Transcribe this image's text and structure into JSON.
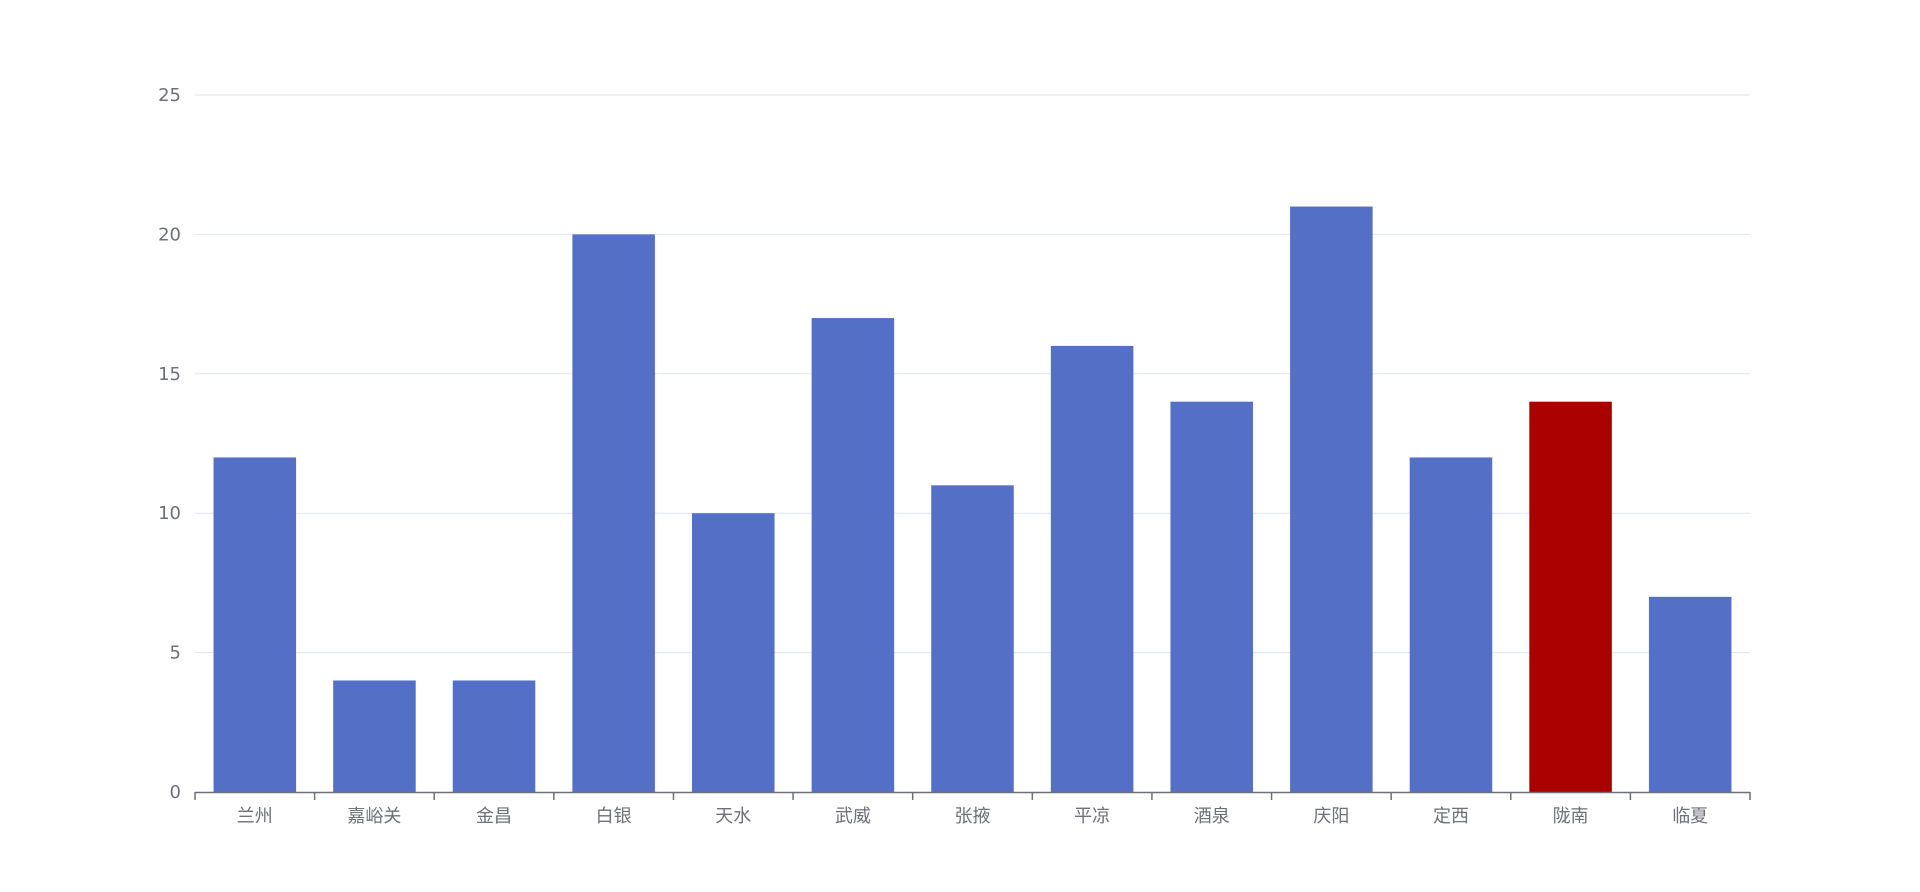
{
  "chart_data": {
    "type": "bar",
    "title": "",
    "xlabel": "",
    "ylabel": "",
    "categories": [
      "兰州",
      "嘉峪关",
      "金昌",
      "白银",
      "天水",
      "武威",
      "张掖",
      "平凉",
      "酒泉",
      "庆阳",
      "定西",
      "陇南",
      "临夏"
    ],
    "series": [
      {
        "values": [
          12,
          4,
          4,
          20,
          10,
          17,
          11,
          16,
          14,
          21,
          12,
          14,
          7
        ]
      }
    ],
    "ylim": [
      0,
      25
    ],
    "yticks": [
      0,
      5,
      10,
      15,
      20,
      25
    ],
    "grid": true,
    "highlight_category": "陇南",
    "colors": {
      "bar": "#5470c6",
      "highlight": "#aa0000",
      "grid": "#e0e6f1",
      "axis": "#6e7079",
      "text": "#6e7079"
    }
  }
}
